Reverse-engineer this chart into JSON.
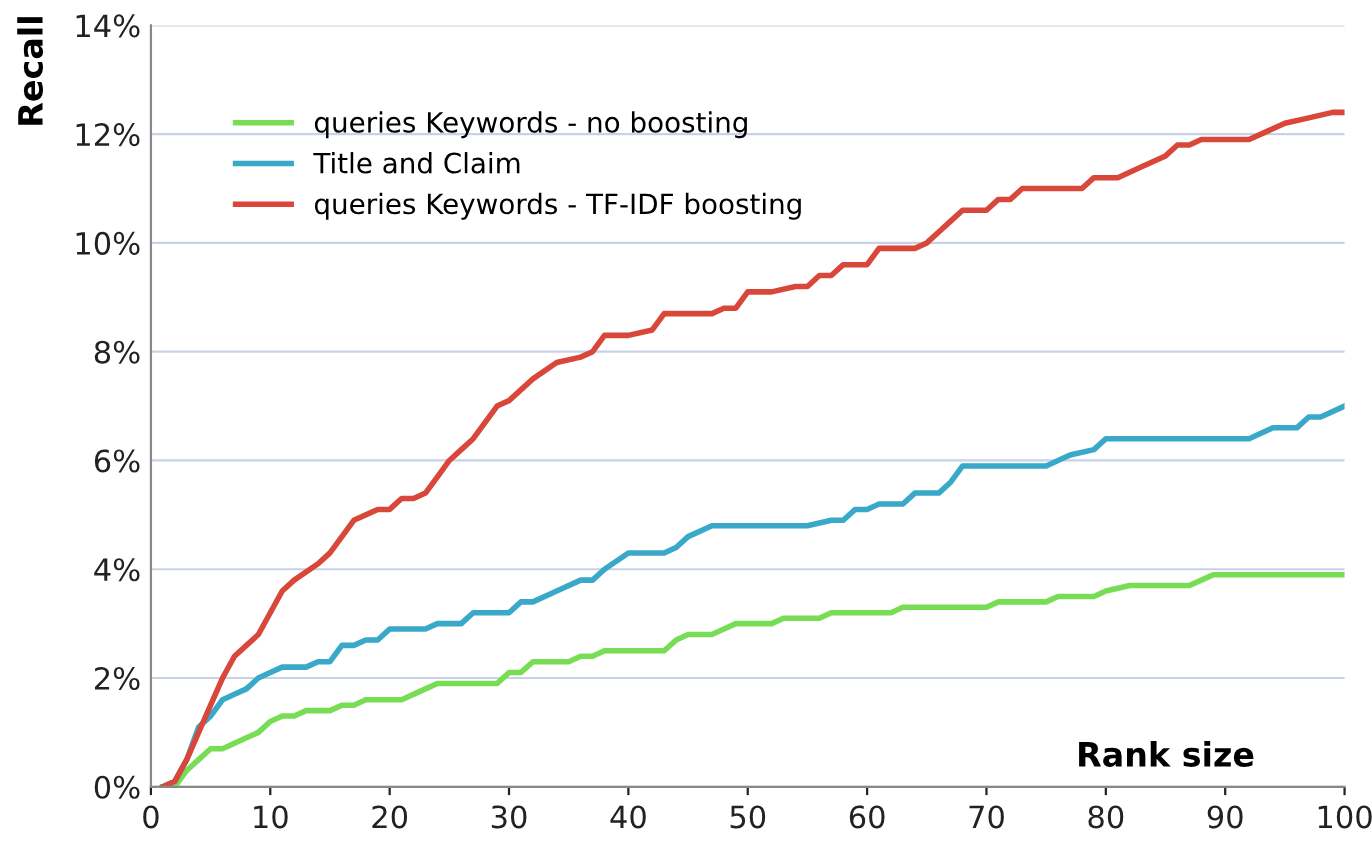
{
  "chart_data": {
    "type": "line",
    "xlabel": "Rank size",
    "ylabel": "Recall",
    "xlim": [
      0,
      100
    ],
    "xticks": [
      0,
      10,
      20,
      30,
      40,
      50,
      60,
      70,
      80,
      90,
      100
    ],
    "ylim": [
      0,
      14
    ],
    "yticks": [
      {
        "value": 0,
        "label": "0%"
      },
      {
        "value": 2,
        "label": "2%"
      },
      {
        "value": 4,
        "label": "4%"
      },
      {
        "value": 6,
        "label": "6%"
      },
      {
        "value": 8,
        "label": "8%"
      },
      {
        "value": 10,
        "label": "10%"
      },
      {
        "value": 12,
        "label": "12%"
      },
      {
        "value": 14,
        "label": "14%"
      }
    ],
    "grid": "y",
    "legend": "top left",
    "marker": "none",
    "line_style": "solid",
    "series": [
      {
        "name": "queries Keywords - no boosting",
        "color": "#77dd55",
        "x": [
          1,
          2,
          3,
          4,
          5,
          6,
          7,
          8,
          9,
          10,
          11,
          12,
          13,
          15,
          16,
          17,
          18,
          20,
          21,
          23,
          24,
          29,
          30,
          31,
          32,
          35,
          36,
          37,
          38,
          43,
          44,
          45,
          47,
          48,
          49,
          52,
          53,
          56,
          57,
          62,
          63,
          70,
          71,
          75,
          76,
          79,
          80,
          82,
          87,
          88,
          89,
          100
        ],
        "values": [
          0,
          0,
          0.3,
          0.5,
          0.7,
          0.7,
          0.8,
          0.9,
          1.0,
          1.2,
          1.3,
          1.3,
          1.4,
          1.4,
          1.5,
          1.5,
          1.6,
          1.6,
          1.6,
          1.8,
          1.9,
          1.9,
          2.1,
          2.1,
          2.3,
          2.3,
          2.4,
          2.4,
          2.5,
          2.5,
          2.7,
          2.8,
          2.8,
          2.9,
          3.0,
          3.0,
          3.1,
          3.1,
          3.2,
          3.2,
          3.3,
          3.3,
          3.4,
          3.4,
          3.5,
          3.5,
          3.6,
          3.7,
          3.7,
          3.8,
          3.9,
          3.9
        ]
      },
      {
        "name": "Title and Claim",
        "color": "#3aa8c8",
        "x": [
          1,
          2,
          3,
          4,
          5,
          6,
          7,
          8,
          9,
          10,
          11,
          13,
          14,
          15,
          16,
          17,
          18,
          19,
          20,
          23,
          24,
          26,
          27,
          30,
          31,
          32,
          34,
          36,
          37,
          38,
          40,
          43,
          44,
          45,
          47,
          55,
          57,
          58,
          59,
          60,
          61,
          63,
          64,
          66,
          67,
          68,
          75,
          77,
          79,
          80,
          92,
          94,
          96,
          97,
          98,
          100
        ],
        "values": [
          0,
          0.1,
          0.5,
          1.1,
          1.3,
          1.6,
          1.7,
          1.8,
          2.0,
          2.1,
          2.2,
          2.2,
          2.3,
          2.3,
          2.6,
          2.6,
          2.7,
          2.7,
          2.9,
          2.9,
          3.0,
          3.0,
          3.2,
          3.2,
          3.4,
          3.4,
          3.6,
          3.8,
          3.8,
          4.0,
          4.3,
          4.3,
          4.4,
          4.6,
          4.8,
          4.8,
          4.9,
          4.9,
          5.1,
          5.1,
          5.2,
          5.2,
          5.4,
          5.4,
          5.6,
          5.9,
          5.9,
          6.1,
          6.2,
          6.4,
          6.4,
          6.6,
          6.6,
          6.8,
          6.8,
          7.0
        ]
      },
      {
        "name": "queries Keywords - TF-IDF boosting",
        "color": "#d9473a",
        "x": [
          1,
          2,
          3,
          4,
          5,
          6,
          7,
          8,
          9,
          10,
          11,
          12,
          14,
          15,
          16,
          17,
          19,
          20,
          21,
          22,
          23,
          24,
          25,
          26,
          27,
          28,
          29,
          30,
          32,
          34,
          36,
          37,
          38,
          40,
          42,
          43,
          47,
          48,
          49,
          50,
          52,
          54,
          55,
          56,
          57,
          58,
          60,
          61,
          64,
          65,
          66,
          67,
          68,
          70,
          71,
          72,
          73,
          78,
          79,
          81,
          83,
          85,
          86,
          87,
          88,
          90,
          92,
          95,
          97,
          99,
          100
        ],
        "values": [
          0,
          0.1,
          0.5,
          1.0,
          1.5,
          2.0,
          2.4,
          2.6,
          2.8,
          3.2,
          3.6,
          3.8,
          4.1,
          4.3,
          4.6,
          4.9,
          5.1,
          5.1,
          5.3,
          5.3,
          5.4,
          5.7,
          6.0,
          6.2,
          6.4,
          6.7,
          7.0,
          7.1,
          7.5,
          7.8,
          7.9,
          8.0,
          8.3,
          8.3,
          8.4,
          8.7,
          8.7,
          8.8,
          8.8,
          9.1,
          9.1,
          9.2,
          9.2,
          9.4,
          9.4,
          9.6,
          9.6,
          9.9,
          9.9,
          10.0,
          10.2,
          10.4,
          10.6,
          10.6,
          10.8,
          10.8,
          11.0,
          11.0,
          11.2,
          11.2,
          11.4,
          11.6,
          11.8,
          11.8,
          11.9,
          11.9,
          11.9,
          12.2,
          12.3,
          12.4,
          12.4
        ]
      }
    ]
  }
}
